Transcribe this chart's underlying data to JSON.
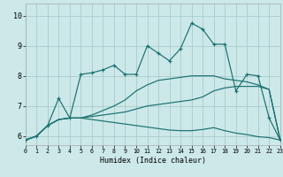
{
  "xlabel": "Humidex (Indice chaleur)",
  "bg_color": "#cce8e8",
  "grid_color": "#aacccc",
  "line_color": "#1a7070",
  "xlim": [
    0,
    23
  ],
  "ylim": [
    5.7,
    10.4
  ],
  "xticks": [
    0,
    1,
    2,
    3,
    4,
    5,
    6,
    7,
    8,
    9,
    10,
    11,
    12,
    13,
    14,
    15,
    16,
    17,
    18,
    19,
    20,
    21,
    22,
    23
  ],
  "yticks": [
    6,
    7,
    8,
    9,
    10
  ],
  "x": [
    0,
    1,
    2,
    3,
    4,
    5,
    6,
    7,
    8,
    9,
    10,
    11,
    12,
    13,
    14,
    15,
    16,
    17,
    18,
    19,
    20,
    21,
    22,
    23
  ],
  "line_main": [
    5.87,
    6.0,
    6.35,
    7.25,
    6.6,
    8.05,
    8.1,
    8.2,
    8.35,
    8.05,
    8.05,
    9.0,
    8.75,
    8.5,
    8.9,
    9.75,
    9.55,
    9.05,
    9.05,
    7.5,
    8.05,
    8.0,
    6.6,
    5.87
  ],
  "line_fan1": [
    5.87,
    6.0,
    6.35,
    6.55,
    6.6,
    6.6,
    6.7,
    6.85,
    7.0,
    7.2,
    7.5,
    7.7,
    7.85,
    7.9,
    7.95,
    8.0,
    8.0,
    8.0,
    7.9,
    7.85,
    7.8,
    7.7,
    7.55,
    5.87
  ],
  "line_fan2": [
    5.87,
    6.0,
    6.35,
    6.55,
    6.6,
    6.6,
    6.65,
    6.7,
    6.75,
    6.8,
    6.9,
    7.0,
    7.05,
    7.1,
    7.15,
    7.2,
    7.3,
    7.5,
    7.6,
    7.65,
    7.65,
    7.65,
    7.55,
    5.87
  ],
  "line_fan3": [
    5.87,
    6.0,
    6.35,
    6.55,
    6.6,
    6.6,
    6.55,
    6.5,
    6.45,
    6.4,
    6.35,
    6.3,
    6.25,
    6.2,
    6.18,
    6.18,
    6.22,
    6.28,
    6.18,
    6.1,
    6.05,
    5.98,
    5.95,
    5.87
  ]
}
